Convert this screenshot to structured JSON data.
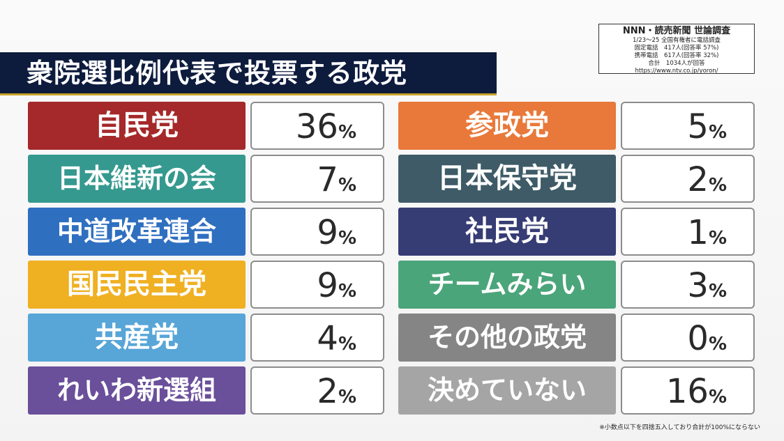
{
  "title": "衆院選比例代表で投票する政党",
  "source": {
    "title": "NNN・読売新聞 世論調査",
    "lines": [
      "1/23〜25 全国有権者に電話調査",
      "固定電話　417人(回答率 57%)",
      "携帯電話　617人(回答率 32%)",
      "合計　1034人が回答",
      "https://www.ntv.co.jp/yoron/"
    ]
  },
  "footnote": "※小数点以下を四捨五入しており合計が100%にならない",
  "colors": {
    "title_bg": "#0d1b3d",
    "accent": "#c9a227"
  },
  "chart_data": {
    "type": "table",
    "title": "衆院選比例代表で投票する政党",
    "unit": "%",
    "items": [
      {
        "party": "自民党",
        "value": 36,
        "color": "#a5292a"
      },
      {
        "party": "日本維新の会",
        "value": 7,
        "color": "#35998f"
      },
      {
        "party": "中道改革連合",
        "value": 9,
        "color": "#2f6fc0"
      },
      {
        "party": "国民民主党",
        "value": 9,
        "color": "#efb022"
      },
      {
        "party": "共産党",
        "value": 4,
        "color": "#58a5d8"
      },
      {
        "party": "れいわ新選組",
        "value": 2,
        "color": "#6a4f9b"
      },
      {
        "party": "参政党",
        "value": 5,
        "color": "#e8793a"
      },
      {
        "party": "日本保守党",
        "value": 2,
        "color": "#3e5b67"
      },
      {
        "party": "社民党",
        "value": 1,
        "color": "#363c74"
      },
      {
        "party": "チームみらい",
        "value": 3,
        "color": "#4aa57a"
      },
      {
        "party": "その他の政党",
        "value": 0,
        "color": "#858585"
      },
      {
        "party": "決めていない",
        "value": 16,
        "color": "#a5a5a5"
      }
    ]
  }
}
